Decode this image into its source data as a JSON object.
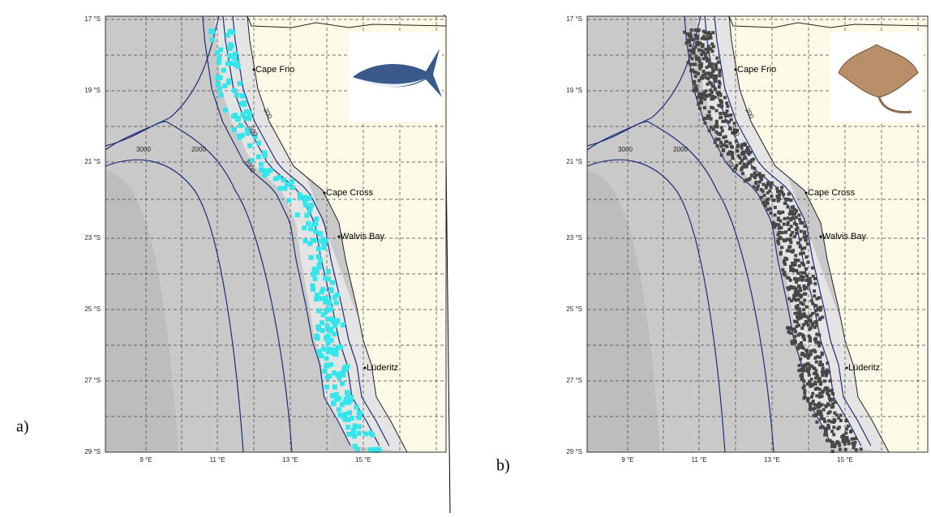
{
  "panels": [
    {
      "label": "a)",
      "lat_labels": [
        "17 °S",
        "19 °S",
        "21 °S",
        "23 °S",
        "25 °S",
        "27 °S",
        "29 °S"
      ],
      "lon_labels": [
        "9 °E",
        "11 °E",
        "13 °E",
        "15 °E"
      ],
      "places": [
        "Cape Frio",
        "Cape Cross",
        "Walvis Bay",
        "Lüderitz"
      ],
      "contour_labels": [
        "200",
        "500",
        "1000",
        "2000",
        "3000"
      ]
    },
    {
      "label": "b)",
      "lat_labels": [
        "17 °S",
        "19 °S",
        "21 °S",
        "23 °S",
        "25 °S",
        "27 °S",
        "29 °S"
      ],
      "lon_labels": [
        "9 °E",
        "11 °E",
        "13 °E",
        "15 °E"
      ],
      "places": [
        "Cape Frio",
        "Cape Cross",
        "Walvis Bay",
        "Lüderitz"
      ],
      "contour_labels": [
        "200",
        "500",
        "1000",
        "2000",
        "3000"
      ]
    }
  ]
}
